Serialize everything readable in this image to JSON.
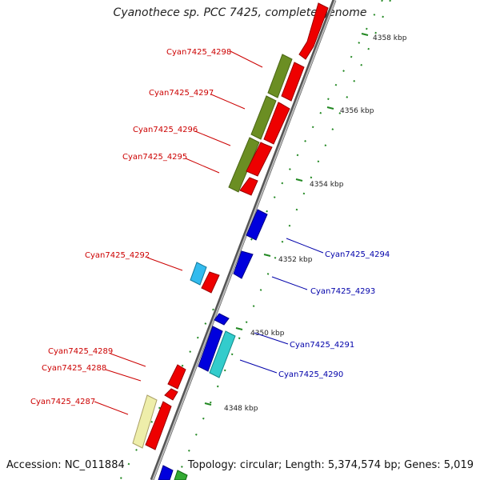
{
  "title": "Cyanothece sp. PCC 7425, complete genome",
  "accession": "Accession: NC_011884",
  "summary": "Topology: circular; Length: 5,374,574 bp; Genes: 5,019",
  "colors": {
    "forward_gene": "#ee0000",
    "reverse_gene": "#0000dd",
    "forward_label": "#cc0000",
    "reverse_label": "#0000aa",
    "backbone": "#888888",
    "tick": "#228822",
    "olive_feature": "#6b8e23",
    "cyan_feature": "#33bbdd",
    "pale_feature": "#eeeeaa"
  },
  "ticks": [
    "4348 kbp",
    "4350 kbp",
    "4352 kbp",
    "4354 kbp",
    "4356 kbp",
    "4358 kbp"
  ],
  "forward_genes": [
    "Cyan7425_4298",
    "Cyan7425_4297",
    "Cyan7425_4296",
    "Cyan7425_4295",
    "Cyan7425_4292",
    "Cyan7425_4289",
    "Cyan7425_4288",
    "Cyan7425_4287"
  ],
  "reverse_genes": [
    "Cyan7425_4294",
    "Cyan7425_4293",
    "Cyan7425_4291",
    "Cyan7425_4290"
  ]
}
